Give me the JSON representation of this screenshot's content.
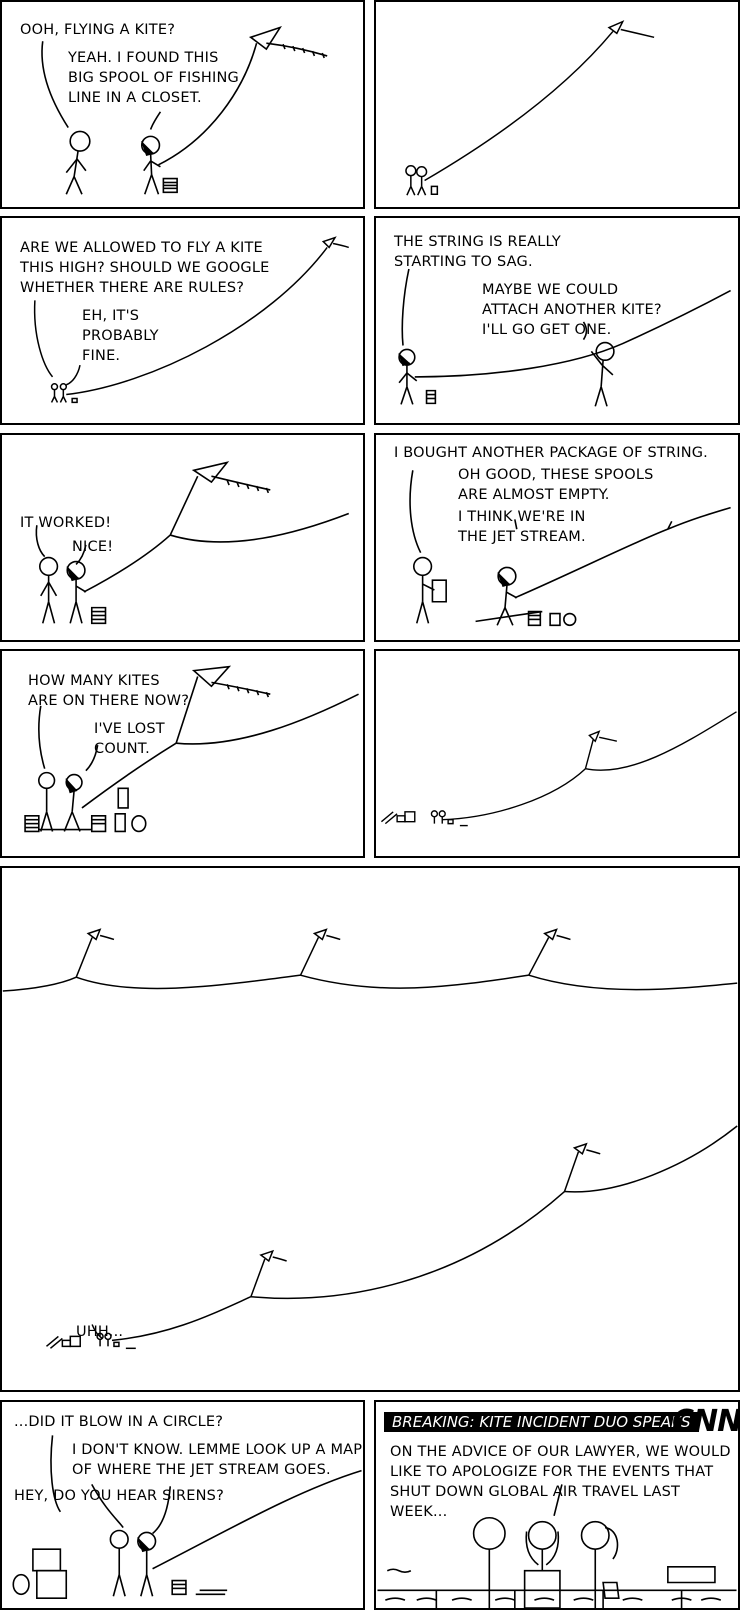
{
  "p1": {
    "line1": "OOH, FLYING A KITE?",
    "line2": "YEAH. I FOUND THIS\nBIG SPOOL OF FISHING\nLINE IN A CLOSET."
  },
  "p3": {
    "line1": "ARE WE ALLOWED TO FLY A KITE\nTHIS HIGH? SHOULD WE GOOGLE\nWHETHER THERE ARE RULES?",
    "line2": "EH, IT'S\nPROBABLY\nFINE."
  },
  "p4": {
    "line1": "THE STRING IS REALLY\nSTARTING TO SAG.",
    "line2": "MAYBE WE COULD\nATTACH ANOTHER KITE?\nI'LL GO GET ONE."
  },
  "p5": {
    "line1": "IT WORKED!",
    "line2": "NICE!"
  },
  "p6": {
    "line1": "I BOUGHT ANOTHER PACKAGE OF STRING.",
    "line2": "OH GOOD, THESE SPOOLS\nARE ALMOST EMPTY.",
    "line3": "I THINK WE'RE IN\nTHE JET STREAM."
  },
  "p7": {
    "line1": "HOW MANY KITES\nARE ON THERE NOW?",
    "line2": "I'VE LOST\nCOUNT."
  },
  "p9": {
    "line1": "UHH..."
  },
  "p10": {
    "line1": "...DID IT BLOW IN A CIRCLE?",
    "line2": "I DON'T KNOW. LEMME LOOK UP A MAP\nOF WHERE THE JET STREAM GOES.",
    "line3": "HEY, DO YOU HEAR SIRENS?"
  },
  "p11": {
    "banner": "BREAKING: KITE INCIDENT DUO SPEAKS",
    "logo": "CNN",
    "line1": "ON THE ADVICE OF OUR LAWYER, WE WOULD\nLIKE TO APOLOGIZE FOR THE EVENTS THAT\nSHUT DOWN GLOBAL AIR TRAVEL LAST WEEK..."
  }
}
